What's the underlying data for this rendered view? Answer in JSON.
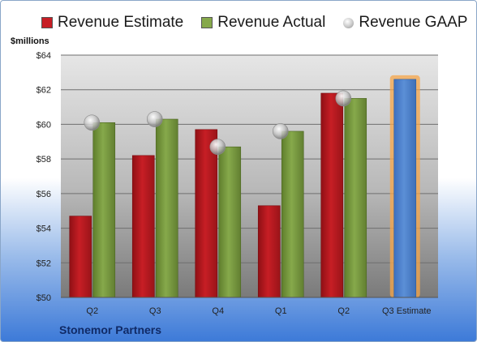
{
  "chart_data": {
    "type": "bar",
    "title": "",
    "ylabel": "$millions",
    "xlabel": "",
    "ylim": [
      50,
      64
    ],
    "y_ticks": [
      "$50",
      "$52",
      "$54",
      "$56",
      "$58",
      "$60",
      "$62",
      "$64"
    ],
    "categories": [
      "Q2",
      "Q3",
      "Q4",
      "Q1",
      "Q2",
      "Q3 Estimate"
    ],
    "series": [
      {
        "name": "Revenue Estimate",
        "type": "bar",
        "values": [
          54.7,
          58.2,
          59.7,
          55.3,
          61.8,
          62.6
        ]
      },
      {
        "name": "Revenue Actual",
        "type": "bar",
        "values": [
          60.1,
          60.3,
          58.7,
          59.6,
          61.5,
          null
        ]
      },
      {
        "name": "Revenue GAAP",
        "type": "marker",
        "values": [
          60.1,
          60.3,
          58.7,
          59.6,
          61.5,
          null
        ]
      }
    ],
    "legend_position": "top",
    "grid": true
  },
  "colors": {
    "estimate": "#c71e25",
    "actual": "#86a94b",
    "gaap": "#b5b5b5",
    "projection": "#5b8fd6",
    "projection_glow": "#f5a54a"
  },
  "footer": {
    "company": "Stonemor Partners"
  }
}
